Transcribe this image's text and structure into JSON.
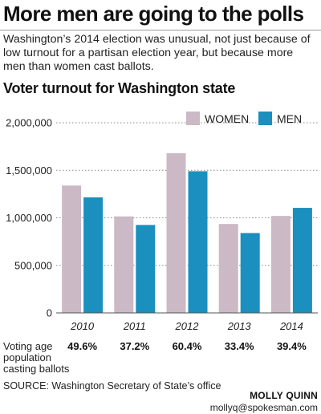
{
  "header": {
    "title": "More men are going to the polls",
    "intro": "Washington’s 2014 election was unusual, not just because of low turnout for a partisan election year, but because more men than women cast ballots."
  },
  "chart_data": {
    "type": "bar",
    "title": "Voter turnout for Washington state",
    "xlabel": "",
    "ylabel": "",
    "categories": [
      "2010",
      "2011",
      "2012",
      "2013",
      "2014"
    ],
    "series": [
      {
        "name": "WOMEN",
        "color": "#cbb9c6",
        "values": [
          1340000,
          1015000,
          1680000,
          935000,
          1020000
        ]
      },
      {
        "name": "MEN",
        "color": "#1b8fbd",
        "values": [
          1215000,
          925000,
          1490000,
          840000,
          1105000
        ]
      }
    ],
    "ylim": [
      0,
      2000000
    ],
    "yticks": [
      0,
      500000,
      1000000,
      1500000,
      2000000
    ],
    "ytick_labels": [
      "0",
      "500,000",
      "1,000,000",
      "1,500,000",
      "2,000,000"
    ],
    "grid": true,
    "legend": "top-right"
  },
  "turnout_row": {
    "label": "Voting age population casting ballots",
    "values": [
      "49.6%",
      "37.2%",
      "60.4%",
      "33.4%",
      "39.4%"
    ]
  },
  "footer": {
    "source": "SOURCE: Washington Secretary of State’s office",
    "credit_name": "MOLLY QUINN",
    "credit_email": "mollyq@spokesman.com"
  }
}
